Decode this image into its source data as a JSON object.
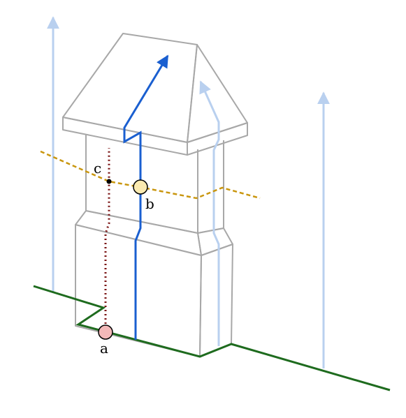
{
  "labels": {
    "a": "a",
    "b": "b",
    "c": "c"
  },
  "colors": {
    "outline": "#a8a8a8",
    "ground": "#1e6b1e",
    "path_main": "#1a5fd0",
    "path_faint": "#b9d0ef",
    "dotted_dark": "#7b1515",
    "dotted_gold": "#c9960e",
    "point_a_fill": "#f3b9b9",
    "point_b_fill": "#fbeab0",
    "point_c_fill": "#000000"
  }
}
